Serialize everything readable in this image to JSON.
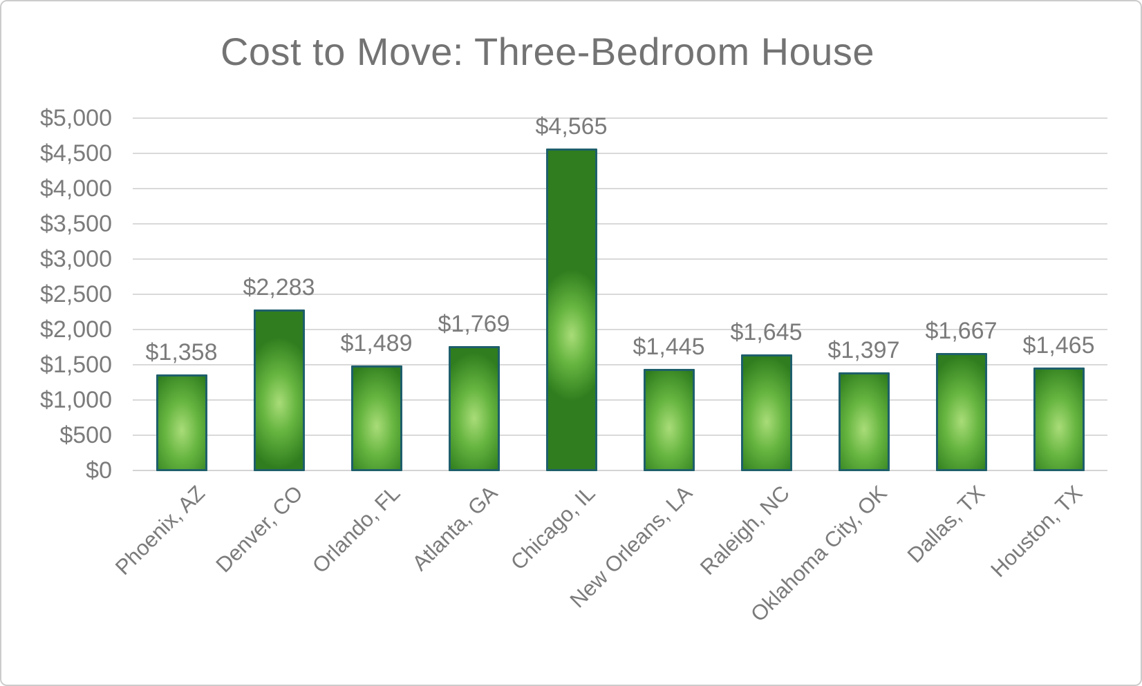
{
  "frame": {
    "background": "#ffffff",
    "border_color": "#cccccc"
  },
  "chart_data": {
    "type": "bar",
    "title": "Cost to Move: Three-Bedroom House",
    "categories": [
      "Phoenix, AZ",
      "Denver, CO",
      "Orlando, FL",
      "Atlanta, GA",
      "Chicago, IL",
      "New Orleans, LA",
      "Raleigh, NC",
      "Oklahoma City, OK",
      "Dallas, TX",
      "Houston, TX"
    ],
    "values": [
      1358,
      2283,
      1489,
      1769,
      4565,
      1445,
      1645,
      1397,
      1667,
      1465
    ],
    "value_labels": [
      "$1,358",
      "$2,283",
      "$1,489",
      "$1,769",
      "$4,565",
      "$1,445",
      "$1,645",
      "$1,397",
      "$1,667",
      "$1,465"
    ],
    "xlabel": "",
    "ylabel": "",
    "ylim": [
      0,
      5000
    ],
    "ytick_step": 500,
    "ytick_labels": [
      "$0",
      "$500",
      "$1,000",
      "$1,500",
      "$2,000",
      "$2,500",
      "$3,000",
      "$3,500",
      "$4,000",
      "$4,500",
      "$5,000"
    ],
    "grid": true,
    "legend": false,
    "category_label_rotation_deg": 45,
    "colors": {
      "bar_fill_center": "#a9dc78",
      "bar_fill_mid": "#66b540",
      "bar_fill_edge": "#2f7d1e",
      "bar_border": "#1e5f6b",
      "gridline": "#d9d9d9",
      "axis_line": "#d4d4d4",
      "text": "#7b7b7b",
      "title_text": "#737373"
    }
  }
}
